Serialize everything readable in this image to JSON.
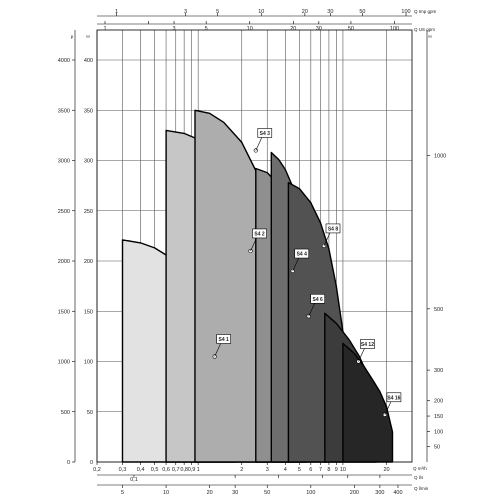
{
  "chart_data": {
    "type": "area",
    "main_x_axis": {
      "scale": "log",
      "ticks": [
        0.2,
        0.3,
        0.4,
        0.5,
        0.6,
        0.7,
        0.8,
        0.9,
        1,
        2,
        3,
        4,
        5,
        6,
        7,
        8,
        9,
        10,
        20
      ],
      "tick_labels": [
        "0,2",
        "0,3",
        "0,4",
        "0,5",
        "0,6",
        "0,7",
        "0,8",
        "0,9",
        "1",
        "2",
        "3",
        "4",
        "5",
        "6",
        "7",
        "8",
        "9",
        "10",
        "20"
      ],
      "range": [
        0.2,
        30
      ],
      "unit": "Q m³/h"
    },
    "secondary_x_axes": [
      {
        "unit": "Q Imp gpm",
        "ticks": [
          1,
          3,
          5,
          10,
          20,
          30,
          50,
          100
        ],
        "tick_labels": [
          "1",
          "3",
          "5",
          "10",
          "20",
          "30",
          "50",
          "100"
        ]
      },
      {
        "unit": "Q US gpm",
        "ticks": [
          1,
          2,
          3,
          5,
          10,
          20,
          30,
          50,
          100
        ],
        "tick_labels": [
          "1",
          "",
          "3",
          "5",
          "10",
          "20",
          "30",
          "50",
          "100"
        ]
      },
      {
        "unit": "Q l/s",
        "ticks": [
          0.1,
          0.5,
          1,
          2,
          3,
          5
        ],
        "tick_labels": [
          "0,1",
          "",
          "",
          "",
          "",
          ""
        ]
      },
      {
        "unit": "Q l/min",
        "ticks": [
          5,
          10,
          20,
          30,
          50,
          100,
          200,
          300,
          400
        ],
        "tick_labels": [
          "5",
          "10",
          "20",
          "30",
          "50",
          "100",
          "200",
          "300",
          "400"
        ]
      }
    ],
    "y_axis_m": {
      "unit": "H m",
      "range": [
        0,
        400
      ],
      "ticks": [
        0,
        50,
        100,
        150,
        200,
        250,
        300,
        350,
        400
      ]
    },
    "y_axis_kpa": {
      "unit": "p kPa",
      "range": [
        0,
        4000
      ],
      "ticks": [
        0,
        500,
        1000,
        1500,
        2000,
        2500,
        3000,
        3500,
        4000
      ]
    },
    "y_axis_ft": {
      "unit": "H ft",
      "ticks": [
        50,
        100,
        150,
        200,
        300,
        500,
        1000
      ],
      "tick_labels": [
        "50",
        "100",
        "150",
        "200",
        "300",
        "500",
        "1000"
      ]
    },
    "grid": true,
    "series": [
      {
        "name": "S4 1",
        "color": "#e2e2e2",
        "x": [
          0.3,
          0.4,
          0.5,
          0.6,
          0.7,
          0.8,
          1.0,
          1.2,
          1.4,
          1.6,
          1.7,
          1.8
        ],
        "y": [
          221,
          218,
          213,
          206,
          199,
          191,
          172,
          151,
          128,
          104,
          92,
          80
        ],
        "callout": [
          1.3,
          105
        ]
      },
      {
        "name": "S4 2",
        "color": "#c6c6c6",
        "x": [
          0.6,
          0.8,
          1.0,
          1.5,
          2.0,
          2.5,
          2.8,
          3.1
        ],
        "y": [
          330,
          327,
          321,
          298,
          266,
          222,
          192,
          150
        ],
        "callout": [
          2.3,
          210
        ]
      },
      {
        "name": "S4 3",
        "color": "#adadad",
        "x": [
          0.95,
          1.2,
          1.5,
          2.0,
          2.5,
          3.0,
          3.5,
          4.0,
          4.3
        ],
        "y": [
          350,
          347,
          338,
          318,
          290,
          253,
          208,
          155,
          110
        ],
        "callout": [
          2.5,
          310
        ]
      },
      {
        "name": "S4 4",
        "color": "#8f8f8f",
        "x": [
          2.5,
          3.0,
          3.5,
          4.0,
          4.5,
          5.0,
          5.6
        ],
        "y": [
          292,
          288,
          278,
          262,
          243,
          220,
          180
        ],
        "callout": [
          4.5,
          190
        ]
      },
      {
        "name": "S4 6",
        "color": "#6e6e6e",
        "x": [
          3.2,
          3.6,
          4.0,
          4.5,
          5.0,
          6.0,
          7.0,
          7.7
        ],
        "y": [
          308,
          301,
          291,
          274,
          256,
          212,
          158,
          120
        ],
        "callout": [
          5.8,
          145
        ]
      },
      {
        "name": "S4 8",
        "color": "#525252",
        "x": [
          4.2,
          5.0,
          6.0,
          7.0,
          8.0,
          9.0,
          10.0
        ],
        "y": [
          278,
          272,
          258,
          238,
          212,
          175,
          130
        ],
        "callout": [
          7.4,
          215
        ]
      },
      {
        "name": "S4 12",
        "color": "#3c3c3c",
        "x": [
          7.5,
          9.0,
          11.0,
          13.0,
          15.0,
          17.0
        ],
        "y": [
          148,
          138,
          122,
          105,
          85,
          65
        ],
        "callout": [
          12.8,
          100
        ]
      },
      {
        "name": "S4 16",
        "color": "#262626",
        "x": [
          10.0,
          12.0,
          14.0,
          16.0,
          18.0,
          20.0,
          22.0
        ],
        "y": [
          118,
          108,
          95,
          82,
          70,
          55,
          30
        ],
        "callout": [
          19.5,
          47
        ]
      }
    ]
  }
}
